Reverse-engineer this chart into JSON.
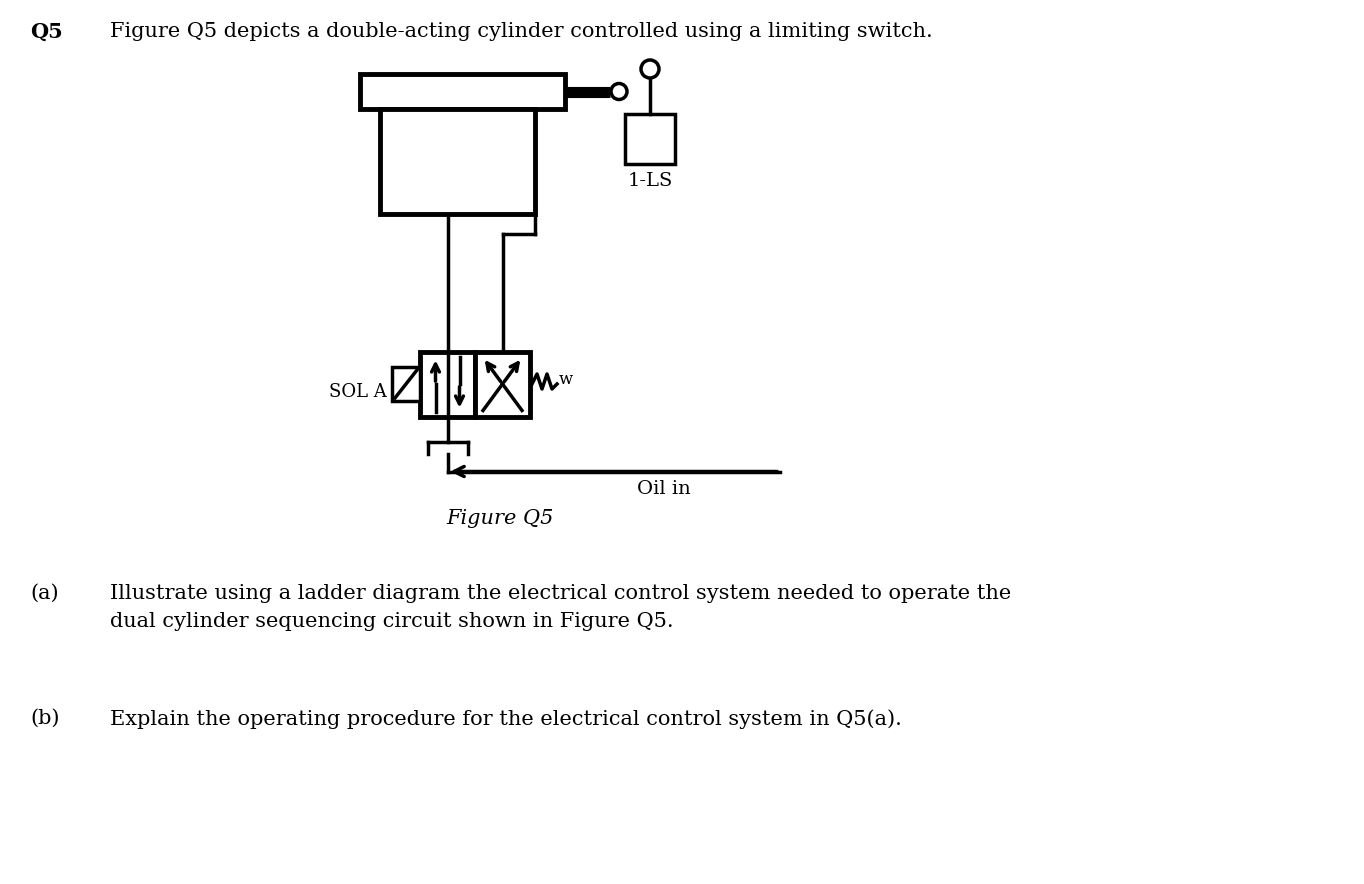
{
  "title_q5": "Q5",
  "text_q5": "Figure Q5 depicts a double-acting cylinder controlled using a limiting switch.",
  "label_a": "(a)",
  "text_a": "Illustrate using a ladder diagram the electrical control system needed to operate the\ndual cylinder sequencing circuit shown in Figure Q5.",
  "label_b": "(b)",
  "text_b": "Explain the operating procedure for the electrical control system in Q5(a).",
  "figure_caption": "Figure Q5",
  "oil_in_label": "Oil in",
  "sol_a_label": "SOL A",
  "ls_label": "1-LS",
  "bg_color": "#ffffff",
  "line_color": "#000000",
  "lw": 2.5,
  "lw_thick": 3.5,
  "font_family": "DejaVu Serif"
}
